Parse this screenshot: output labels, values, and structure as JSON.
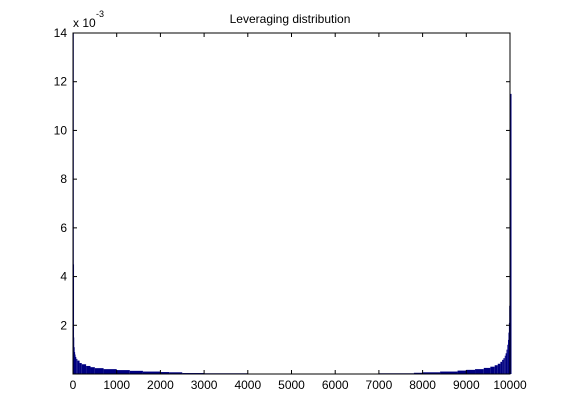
{
  "chart_data": {
    "type": "bar",
    "title": "Leveraging distribution",
    "xlabel": "",
    "ylabel": "",
    "xlim": [
      0,
      10000
    ],
    "ylim": [
      0,
      0.014
    ],
    "x_ticks": [
      0,
      1000,
      2000,
      3000,
      4000,
      5000,
      6000,
      7000,
      8000,
      9000,
      10000
    ],
    "y_ticks": [
      0.002,
      0.004,
      0.006,
      0.008,
      0.01,
      0.012,
      0.014
    ],
    "y_tick_labels": [
      "2",
      "4",
      "6",
      "8",
      "10",
      "12",
      "14"
    ],
    "y_multiplier_label": "x 10",
    "y_multiplier_exponent": "-3",
    "grid": false,
    "legend": "none",
    "bar_color": "#000080",
    "x": [
      0,
      5,
      10,
      20,
      30,
      40,
      50,
      75,
      100,
      150,
      200,
      300,
      400,
      500,
      700,
      1000,
      1300,
      1600,
      2000,
      2200,
      2500,
      3000,
      4000,
      5000,
      6000,
      7000,
      7800,
      8000,
      8400,
      8800,
      9000,
      9200,
      9400,
      9550,
      9650,
      9720,
      9780,
      9820,
      9850,
      9880,
      9900,
      9920,
      9940,
      9955,
      9965,
      9975,
      9982,
      9988,
      9993,
      9997,
      10000
    ],
    "values": [
      0.014,
      0.0045,
      0.0015,
      0.0011,
      0.0009,
      0.0008,
      0.0007,
      0.00062,
      0.00055,
      0.00045,
      0.0004,
      0.00033,
      0.00028,
      0.00024,
      0.0002,
      0.00016,
      0.00013,
      0.0001,
      8e-05,
      7e-05,
      4e-05,
      3e-05,
      2e-05,
      2e-05,
      2e-05,
      3e-05,
      5e-05,
      7e-05,
      0.0001,
      0.00014,
      0.00017,
      0.0002,
      0.00025,
      0.0003,
      0.00036,
      0.00042,
      0.0005,
      0.00058,
      0.00065,
      0.00075,
      0.00085,
      0.001,
      0.0012,
      0.0014,
      0.0017,
      0.0021,
      0.0028,
      0.0038,
      0.0052,
      0.0068,
      0.0115
    ]
  }
}
